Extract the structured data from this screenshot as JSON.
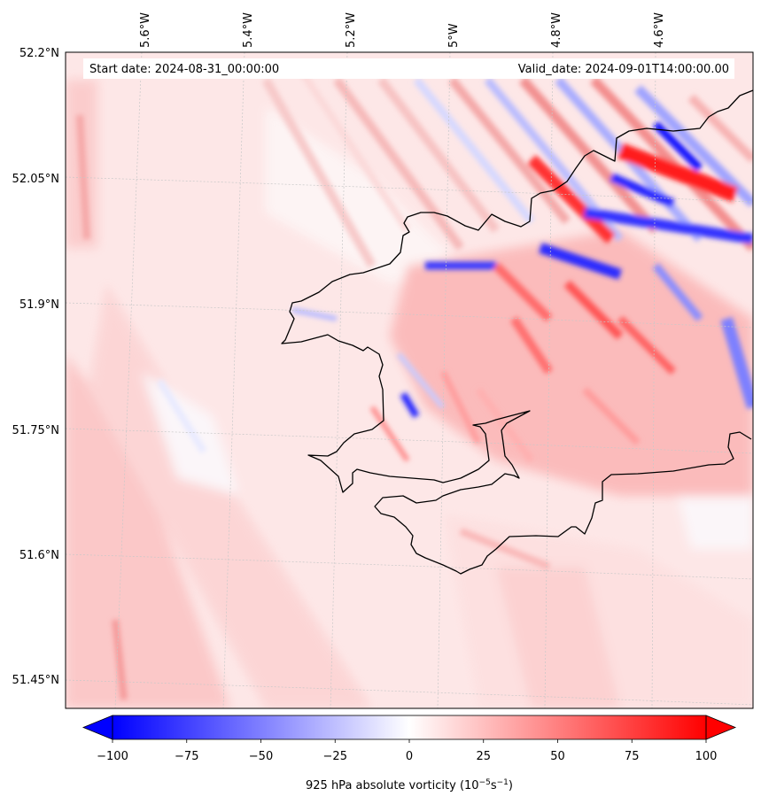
{
  "header": {
    "start_label": "Start date: 2024-08-31_00:00:00",
    "valid_label": "Valid_date: 2024-09-01T14:00:00.00"
  },
  "map": {
    "lon_labels": [
      "5.6°W",
      "5.4°W",
      "5.2°W",
      "5°W",
      "4.8°W",
      "4.6°W"
    ],
    "lat_labels": [
      "52.2°N",
      "52.05°N",
      "51.9°N",
      "51.75°N",
      "51.6°N",
      "51.45°N"
    ],
    "lon_range": [
      -5.75,
      -4.47
    ],
    "lat_range": [
      51.43,
      52.2
    ],
    "gridlines": true,
    "projection": "Lambert conformal",
    "colormap": "bwr",
    "colors": {
      "negative": "#0000ff",
      "zero": "#ffffff",
      "positive": "#ff0000",
      "coastline": "#000000"
    }
  },
  "colorbar": {
    "ticks": [
      "−100",
      "−75",
      "−50",
      "−25",
      "0",
      "25",
      "50",
      "75",
      "100"
    ],
    "range": [
      -100,
      100
    ],
    "extend": "both",
    "title_main": "925 hPa absolute vorticity (10",
    "title_exp1": "−5",
    "title_mid": "s",
    "title_exp2": "−1",
    "title_end": ")"
  }
}
